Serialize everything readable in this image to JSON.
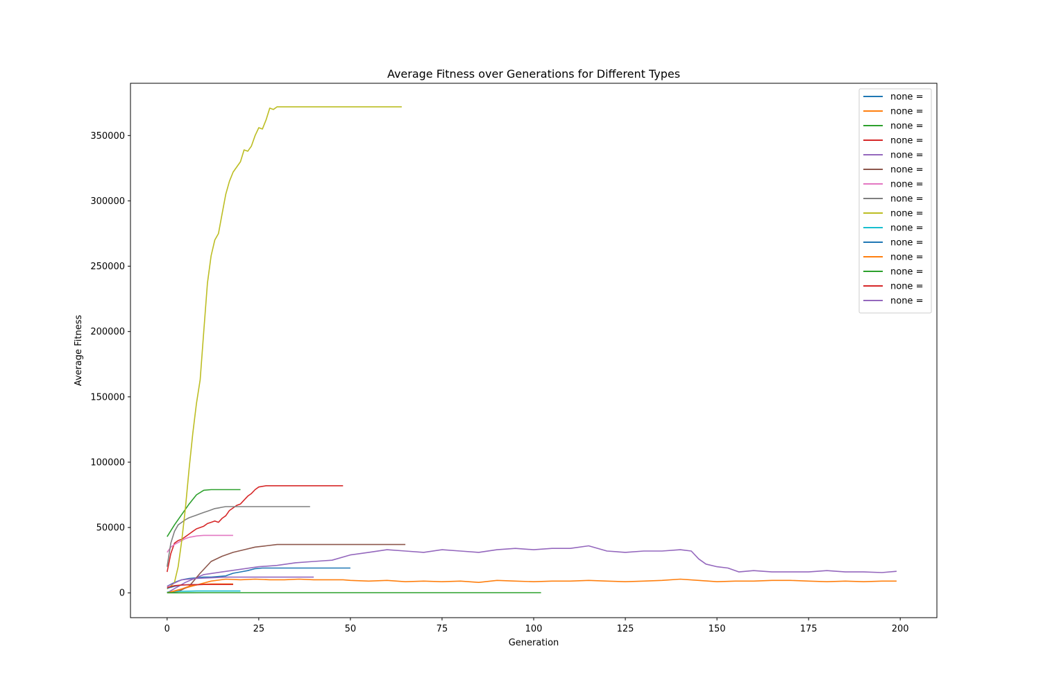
{
  "chart_data": {
    "type": "line",
    "title": "Average Fitness over Generations for Different Types",
    "xlabel": "Generation",
    "ylabel": "Average Fitness",
    "xlim": [
      -10,
      210
    ],
    "ylim": [
      -19000,
      390000
    ],
    "xticks": [
      0,
      25,
      50,
      75,
      100,
      125,
      150,
      175,
      200
    ],
    "yticks": [
      0,
      50000,
      100000,
      150000,
      200000,
      250000,
      300000,
      350000
    ],
    "grid": false,
    "legend_position": "top-right",
    "series": [
      {
        "name": "none =",
        "color": "#1f77b4",
        "x": [
          0,
          2,
          4,
          6,
          8,
          10,
          12,
          14,
          16,
          18,
          20,
          22,
          24,
          26,
          28,
          30,
          35,
          40,
          45,
          50
        ],
        "y": [
          5000,
          8000,
          10000,
          11000,
          11500,
          12000,
          12000,
          12500,
          13000,
          15000,
          16000,
          17000,
          18500,
          19000,
          19000,
          19000,
          19000,
          19000,
          19000,
          19000
        ]
      },
      {
        "name": "none =",
        "color": "#ff7f0e",
        "x": [
          0,
          4,
          8,
          12,
          16,
          20,
          24,
          28,
          32,
          36,
          40,
          44,
          48,
          50,
          55,
          60,
          65,
          70,
          75,
          80,
          85,
          90,
          95,
          100,
          105,
          110,
          115,
          120,
          125,
          130,
          135,
          140,
          145,
          150,
          155,
          160,
          165,
          170,
          175,
          180,
          185,
          190,
          195,
          199
        ],
        "y": [
          0,
          3000,
          6000,
          9000,
          10500,
          10000,
          10500,
          10000,
          10000,
          10500,
          10000,
          10000,
          10000,
          9500,
          9000,
          9500,
          8500,
          9000,
          8500,
          9000,
          8000,
          9500,
          9000,
          8500,
          9000,
          9000,
          9500,
          9000,
          8500,
          9000,
          9500,
          10500,
          9500,
          8500,
          9000,
          9000,
          9500,
          9500,
          9000,
          8500,
          9000,
          8500,
          9000,
          9000
        ]
      },
      {
        "name": "none =",
        "color": "#2ca02c",
        "x": [
          0,
          2,
          4,
          6,
          8,
          10,
          12,
          14,
          16,
          18,
          20
        ],
        "y": [
          43000,
          52000,
          60000,
          68000,
          75000,
          78500,
          79000,
          79000,
          79000,
          79000,
          79000
        ]
      },
      {
        "name": "none =",
        "color": "#d62728",
        "x": [
          0,
          1,
          2,
          3,
          4,
          5,
          6,
          7,
          8,
          9,
          10,
          11,
          12,
          13,
          14,
          15,
          16,
          17,
          18,
          19,
          20,
          21,
          22,
          23,
          24,
          25,
          26,
          27,
          30,
          35,
          40,
          45,
          48
        ],
        "y": [
          16000,
          30000,
          38000,
          40000,
          41000,
          43000,
          45000,
          47000,
          49000,
          50000,
          51000,
          53000,
          54000,
          55000,
          54000,
          57000,
          59000,
          63000,
          65000,
          67000,
          68000,
          71000,
          74000,
          76000,
          79000,
          81000,
          81500,
          82000,
          82000,
          82000,
          82000,
          82000,
          82000
        ]
      },
      {
        "name": "none =",
        "color": "#9467bd",
        "x": [
          0,
          5,
          10,
          15,
          20,
          25,
          30,
          35,
          40,
          45,
          50,
          55,
          60,
          65,
          70,
          75,
          80,
          85,
          90,
          95,
          100,
          105,
          110,
          115,
          120,
          125,
          130,
          135,
          140,
          143,
          145,
          147,
          150,
          153,
          156,
          160,
          165,
          170,
          175,
          180,
          185,
          190,
          195,
          199
        ],
        "y": [
          0,
          8000,
          14000,
          16000,
          18000,
          20000,
          21000,
          23000,
          24000,
          25000,
          29000,
          31000,
          33000,
          32000,
          31000,
          33000,
          32000,
          31000,
          33000,
          34000,
          33000,
          34000,
          34000,
          36000,
          32000,
          31000,
          32000,
          32000,
          33000,
          32000,
          26000,
          22000,
          20000,
          19000,
          16000,
          17000,
          16000,
          16000,
          16000,
          17000,
          16000,
          16000,
          15500,
          16500
        ]
      },
      {
        "name": "none =",
        "color": "#8c564b",
        "x": [
          0,
          3,
          6,
          9,
          12,
          15,
          18,
          21,
          24,
          27,
          30,
          35,
          40,
          45,
          50,
          55,
          60,
          65
        ],
        "y": [
          500,
          1000,
          5000,
          15000,
          24000,
          28000,
          31000,
          33000,
          35000,
          36000,
          37000,
          37000,
          37000,
          37000,
          37000,
          37000,
          37000,
          37000
        ]
      },
      {
        "name": "none =",
        "color": "#e377c2",
        "x": [
          0,
          1,
          2,
          3,
          4,
          5,
          6,
          7,
          8,
          9,
          10,
          12,
          14,
          16,
          18
        ],
        "y": [
          31000,
          35000,
          37000,
          38500,
          40000,
          41500,
          42500,
          43000,
          43500,
          43800,
          44000,
          44000,
          44000,
          44000,
          44000
        ]
      },
      {
        "name": "none =",
        "color": "#7f7f7f",
        "x": [
          0,
          1,
          2,
          3,
          4,
          5,
          6,
          7,
          8,
          9,
          10,
          11,
          12,
          13,
          14,
          15,
          16,
          17,
          18,
          20,
          25,
          30,
          35,
          39
        ],
        "y": [
          20000,
          38000,
          47000,
          52000,
          54000,
          56000,
          57500,
          58500,
          59500,
          60500,
          61500,
          62500,
          63500,
          64500,
          65000,
          65500,
          66000,
          66000,
          66000,
          66000,
          66000,
          66000,
          66000,
          66000
        ]
      },
      {
        "name": "none =",
        "color": "#bcbd22",
        "x": [
          0,
          1,
          2,
          3,
          4,
          5,
          6,
          7,
          8,
          9,
          10,
          11,
          12,
          13,
          14,
          15,
          16,
          17,
          18,
          19,
          20,
          21,
          22,
          23,
          24,
          25,
          26,
          27,
          28,
          29,
          30,
          35,
          40,
          45,
          50,
          55,
          60,
          64
        ],
        "y": [
          3000,
          5000,
          8000,
          20000,
          40000,
          65000,
          95000,
          122000,
          145000,
          163000,
          200000,
          237000,
          258000,
          270000,
          275000,
          290000,
          305000,
          315000,
          322000,
          326000,
          330000,
          339000,
          338000,
          342000,
          350000,
          356000,
          355000,
          362000,
          371000,
          370000,
          372000,
          372000,
          372000,
          372000,
          372000,
          372000,
          372000,
          372000
        ]
      },
      {
        "name": "none =",
        "color": "#17becf",
        "x": [
          0,
          2,
          4,
          6,
          8,
          10,
          12,
          14,
          16,
          18,
          20
        ],
        "y": [
          500,
          1000,
          1200,
          1300,
          1400,
          1400,
          1400,
          1400,
          1400,
          1400,
          1400
        ]
      },
      {
        "name": "none =",
        "color": "#1f77b4",
        "x": [
          0,
          2,
          4,
          6,
          8,
          10,
          12,
          14,
          16,
          18
        ],
        "y": [
          3500,
          5000,
          6000,
          6200,
          6300,
          6400,
          6400,
          6400,
          6400,
          6400
        ]
      },
      {
        "name": "none =",
        "color": "#ff7f0e",
        "x": [
          0,
          3,
          6,
          9,
          12,
          15,
          18
        ],
        "y": [
          0,
          2000,
          5000,
          6500,
          6800,
          6800,
          6800
        ]
      },
      {
        "name": "none =",
        "color": "#2ca02c",
        "x": [
          0,
          10,
          20,
          40,
          60,
          80,
          100,
          102
        ],
        "y": [
          0,
          100,
          100,
          100,
          100,
          100,
          100,
          100
        ]
      },
      {
        "name": "none =",
        "color": "#d62728",
        "x": [
          0,
          2,
          4,
          6,
          8,
          10,
          12,
          14,
          16,
          18
        ],
        "y": [
          4000,
          5500,
          6000,
          6200,
          6300,
          6400,
          6400,
          6400,
          6400,
          6400
        ]
      },
      {
        "name": "none =",
        "color": "#9467bd",
        "x": [
          0,
          4,
          8,
          12,
          16,
          20,
          25,
          30,
          35,
          40
        ],
        "y": [
          5000,
          10000,
          11000,
          11500,
          12000,
          12000,
          12000,
          12000,
          12000,
          12000
        ]
      }
    ]
  }
}
